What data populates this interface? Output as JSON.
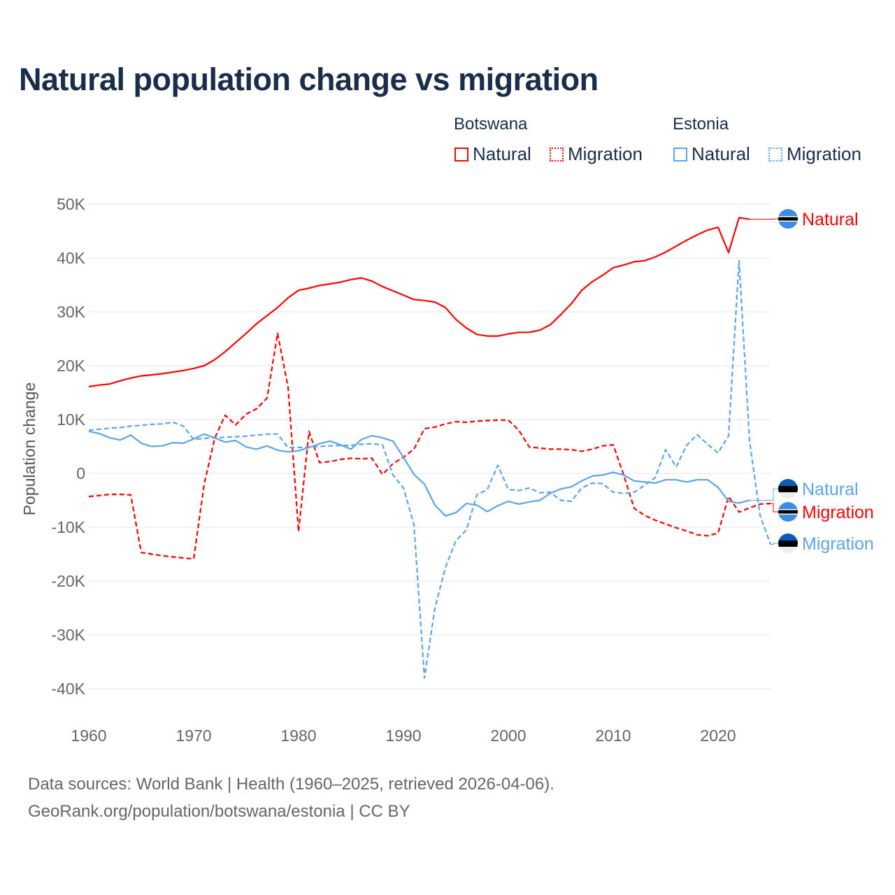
{
  "title": "Natural population change vs migration",
  "legend": {
    "groups": [
      {
        "name": "Botswana",
        "items": [
          "Natural",
          "Migration"
        ]
      },
      {
        "name": "Estonia",
        "items": [
          "Natural",
          "Migration"
        ]
      }
    ]
  },
  "footer": {
    "line1": "Data sources: World Bank | Health (1960–2025, retrieved 2026-04-06).",
    "line2": "GeoRank.org/population/botswana/estonia | CC BY"
  },
  "colors": {
    "botswana": "#ff0000",
    "estonia": "#5aa5ec"
  },
  "chart_data": {
    "type": "line",
    "title": "Natural population change vs migration",
    "xlabel": "",
    "ylabel": "Population change",
    "xlim": [
      1960,
      2025
    ],
    "ylim": [
      -45000,
      50000
    ],
    "x_ticks": [
      "1960",
      "1970",
      "1980",
      "1990",
      "2000",
      "2010",
      "2020"
    ],
    "y_ticks": [
      "50K",
      "40K",
      "30K",
      "20K",
      "10K",
      "0",
      "-10K",
      "-20K",
      "-30K",
      "-40K"
    ],
    "y_tick_values": [
      50000,
      40000,
      30000,
      20000,
      10000,
      0,
      -10000,
      -20000,
      -30000,
      -40000
    ],
    "grid": true,
    "series": [
      {
        "name": "Botswana Natural",
        "country": "Botswana",
        "kind": "Natural",
        "dashed": false,
        "start": 1960,
        "values_k": [
          16.1,
          16.4,
          16.6,
          17.2,
          17.7,
          18.1,
          18.3,
          18.5,
          18.8,
          19.1,
          19.5,
          20.0,
          21.1,
          22.6,
          24.3,
          26.0,
          27.8,
          29.3,
          30.8,
          32.6,
          34.0,
          34.4,
          34.9,
          35.2,
          35.5,
          36.0,
          36.3,
          35.7,
          34.7,
          33.9,
          33.1,
          32.3,
          32.1,
          31.8,
          30.8,
          28.6,
          27.0,
          25.8,
          25.5,
          25.5,
          25.9,
          26.2,
          26.2,
          26.6,
          27.6,
          29.5,
          31.5,
          34.0,
          35.6,
          36.8,
          38.2,
          38.7,
          39.3,
          39.5,
          40.2,
          41.1,
          42.2,
          43.3,
          44.3,
          45.2,
          45.7,
          41.0,
          47.5,
          47.2
        ]
      },
      {
        "name": "Botswana Migration",
        "country": "Botswana",
        "kind": "Migration",
        "dashed": true,
        "start": 1960,
        "values_k": [
          -4.3,
          -4.1,
          -3.9,
          -3.9,
          -4.0,
          -14.7,
          -15.0,
          -15.3,
          -15.5,
          -15.7,
          -15.9,
          -2.0,
          6.5,
          10.8,
          9.0,
          11.0,
          12.0,
          14.0,
          26.0,
          16.0,
          -10.8,
          7.8,
          2.0,
          2.2,
          2.6,
          2.8,
          2.7,
          2.8,
          -0.2,
          1.8,
          3.0,
          4.5,
          8.3,
          8.6,
          9.2,
          9.6,
          9.5,
          9.7,
          9.8,
          9.9,
          9.9,
          8.0,
          4.9,
          4.7,
          4.5,
          4.5,
          4.4,
          4.1,
          4.5,
          5.1,
          5.3,
          -0.3,
          -6.5,
          -7.8,
          -8.7,
          -9.4,
          -10.1,
          -10.7,
          -11.4,
          -11.6,
          -11.1,
          -4.3,
          -7.2,
          -6.4,
          -5.7,
          -5.6
        ]
      },
      {
        "name": "Estonia Natural",
        "country": "Estonia",
        "kind": "Natural",
        "dashed": false,
        "start": 1960,
        "values_k": [
          7.8,
          7.4,
          6.6,
          6.2,
          7.1,
          5.6,
          5.0,
          5.1,
          5.7,
          5.6,
          6.4,
          7.3,
          6.6,
          5.8,
          6.1,
          4.9,
          4.5,
          5.1,
          4.3,
          4.0,
          4.2,
          4.8,
          5.5,
          6.0,
          5.3,
          4.5,
          6.3,
          7.0,
          6.6,
          6.0,
          3.0,
          -0.2,
          -2.0,
          -5.9,
          -7.9,
          -7.3,
          -5.6,
          -5.9,
          -7.1,
          -6.0,
          -5.2,
          -5.7,
          -5.3,
          -5.0,
          -3.7,
          -2.9,
          -2.5,
          -1.4,
          -0.5,
          -0.3,
          0.2,
          -0.3,
          -1.4,
          -1.6,
          -1.8,
          -1.2,
          -1.2,
          -1.6,
          -1.2,
          -1.2,
          -2.6,
          -5.2,
          -5.5,
          -5.0
        ]
      },
      {
        "name": "Estonia Migration",
        "country": "Estonia",
        "kind": "Migration",
        "dashed": true,
        "start": 1960,
        "values_k": [
          8.0,
          8.2,
          8.4,
          8.5,
          8.8,
          8.9,
          9.1,
          9.2,
          9.5,
          8.8,
          6.3,
          6.5,
          6.6,
          6.7,
          6.8,
          6.9,
          7.1,
          7.3,
          7.3,
          4.8,
          4.8,
          4.9,
          5.0,
          5.1,
          5.2,
          5.2,
          5.4,
          5.5,
          5.3,
          -0.3,
          -2.7,
          -9.5,
          -38.0,
          -25.0,
          -17.5,
          -12.5,
          -10.5,
          -4.0,
          -3.0,
          1.5,
          -3.0,
          -3.2,
          -2.7,
          -3.6,
          -3.5,
          -5.0,
          -5.2,
          -2.7,
          -1.8,
          -1.9,
          -3.5,
          -3.7,
          -3.5,
          -2.2,
          -0.8,
          4.4,
          1.2,
          5.2,
          7.2,
          5.4,
          3.8,
          7.0,
          39.5,
          6.0,
          -7.8,
          -13.2
        ]
      }
    ],
    "end_labels": [
      "Natural",
      "Natural",
      "Migration",
      "Migration"
    ]
  }
}
